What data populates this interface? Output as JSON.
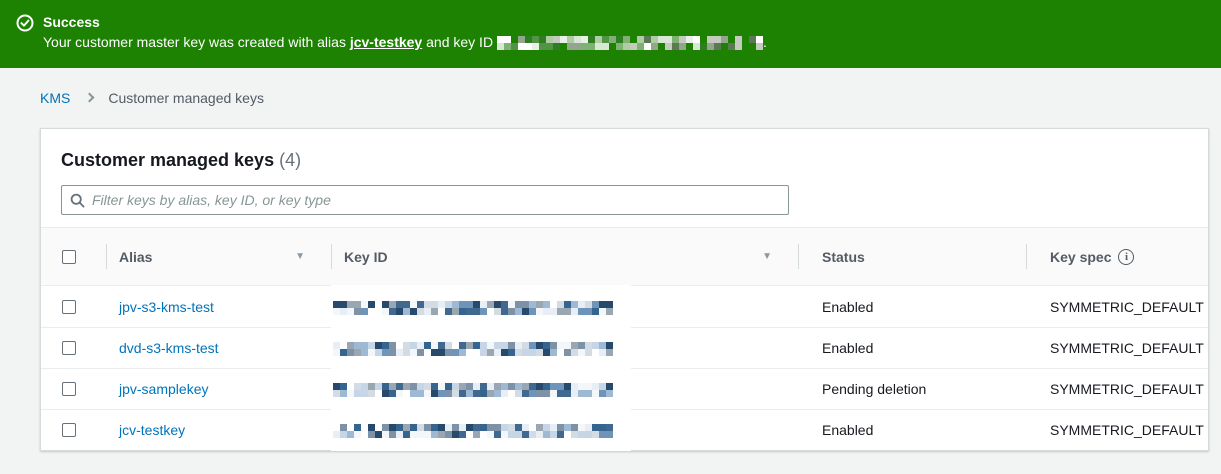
{
  "banner": {
    "title": "Success",
    "message_prefix": "Your customer master key was created with alias ",
    "alias_link": "jcv-testkey",
    "message_middle": " and key ID ",
    "message_suffix": ".",
    "key_id_redacted": true,
    "color": "#1d8102"
  },
  "breadcrumb": {
    "items": [
      {
        "label": "KMS",
        "link": true
      },
      {
        "label": "Customer managed keys",
        "link": false
      }
    ]
  },
  "panel": {
    "title": "Customer managed keys",
    "count": "(4)",
    "filter_placeholder": "Filter keys by alias, key ID, or key type"
  },
  "table": {
    "columns": [
      {
        "label": "Alias",
        "sortable": true
      },
      {
        "label": "Key ID",
        "sortable": true
      },
      {
        "label": "Status",
        "sortable": false
      },
      {
        "label": "Key spec",
        "sortable": false,
        "info_icon": true
      }
    ],
    "rows": [
      {
        "alias": "jpv-s3-kms-test",
        "key_id": "[redacted]",
        "status": "Enabled",
        "key_spec": "SYMMETRIC_DEFAULT"
      },
      {
        "alias": "dvd-s3-kms-test",
        "key_id": "[redacted]",
        "status": "Enabled",
        "key_spec": "SYMMETRIC_DEFAULT"
      },
      {
        "alias": "jpv-samplekey",
        "key_id": "[redacted]",
        "status": "Pending deletion",
        "key_spec": "SYMMETRIC_DEFAULT"
      },
      {
        "alias": "jcv-testkey",
        "key_id": "[redacted]",
        "status": "Enabled",
        "key_spec": "SYMMETRIC_DEFAULT"
      }
    ]
  },
  "icons": {
    "success_check": "check-circle",
    "search": "magnifier",
    "info": "circled-i",
    "sort": "triangle-down",
    "breadcrumb_separator": "chevron-right"
  },
  "colors": {
    "banner_green": "#1d8102",
    "link_blue": "#0073bb",
    "text_primary": "#16191f",
    "text_secondary": "#545b64",
    "border": "#eaeded"
  }
}
